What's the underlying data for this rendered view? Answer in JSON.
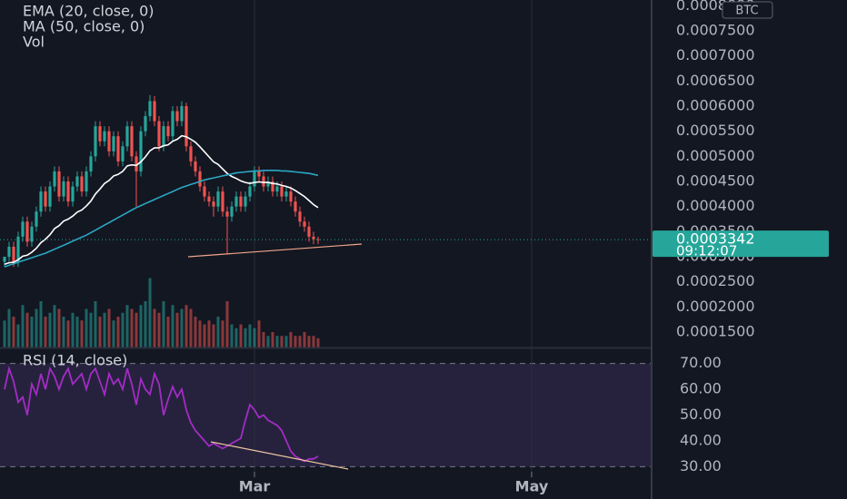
{
  "chart_data": [
    {
      "type": "candlestick",
      "currency": "BTC",
      "last_price": 0.0003342,
      "countdown": "09:12:07",
      "up_color": "#26a69a",
      "down_color": "#ef5350",
      "xlim": [
        -1,
        142.2
      ],
      "ylim": [
        0.0001193,
        0.0008114
      ],
      "yticks": [
        {
          "value": 0.0008,
          "label": "0.0008000"
        },
        {
          "value": 0.00075,
          "label": "0.0007500"
        },
        {
          "value": 0.0007,
          "label": "0.0007000"
        },
        {
          "value": 0.00065,
          "label": "0.0006500"
        },
        {
          "value": 0.0006,
          "label": "0.0006000"
        },
        {
          "value": 0.00055,
          "label": "0.0005500"
        },
        {
          "value": 0.0005,
          "label": "0.0005000"
        },
        {
          "value": 0.00045,
          "label": "0.0004500"
        },
        {
          "value": 0.0004,
          "label": "0.0004000"
        },
        {
          "value": 0.00035,
          "label": "0.0003500"
        },
        {
          "value": 0.0003,
          "label": "0.0003000"
        },
        {
          "value": 0.00025,
          "label": "0.0002500"
        },
        {
          "value": 0.0002,
          "label": "0.0002000"
        },
        {
          "value": 0.00015,
          "label": "0.0001500"
        }
      ],
      "open": [
        0.00029,
        0.0003,
        0.00032,
        0.00029,
        0.00034,
        0.00037,
        0.00033,
        0.00036,
        0.00039,
        0.00043,
        0.0004,
        0.00044,
        0.00047,
        0.00042,
        0.00045,
        0.00041,
        0.00044,
        0.00046,
        0.00043,
        0.00047,
        0.0005,
        0.00056,
        0.00053,
        0.00055,
        0.00051,
        0.00054,
        0.00049,
        0.00052,
        0.00056,
        0.0005,
        0.00047,
        0.00055,
        0.00058,
        0.00061,
        0.00057,
        0.00052,
        0.00056,
        0.00054,
        0.00059,
        0.00057,
        0.0006,
        0.00052,
        0.00049,
        0.00047,
        0.00044,
        0.00042,
        0.00041,
        0.0004,
        0.00043,
        0.00039,
        0.00038,
        0.0004,
        0.00042,
        0.0004,
        0.00042,
        0.00044,
        0.00047,
        0.00046,
        0.00044,
        0.00045,
        0.00043,
        0.00044,
        0.00042,
        0.00043,
        0.00041,
        0.00039,
        0.00037,
        0.00036,
        0.00034,
        0.000335
      ],
      "high": [
        0.0003,
        0.00033,
        0.00033,
        0.00035,
        0.00038,
        0.00038,
        0.00037,
        0.0004,
        0.00044,
        0.00044,
        0.00045,
        0.00048,
        0.00048,
        0.00046,
        0.00046,
        0.00045,
        0.00047,
        0.00047,
        0.00048,
        0.00051,
        0.00057,
        0.00057,
        0.00056,
        0.00056,
        0.00055,
        0.00055,
        0.00053,
        0.00057,
        0.00057,
        0.00051,
        0.00056,
        0.00059,
        0.000622,
        0.00062,
        0.00058,
        0.00057,
        0.00057,
        0.0006,
        0.0006,
        0.00061,
        0.000607,
        0.00053,
        0.0005,
        0.00048,
        0.00045,
        0.00043,
        0.00042,
        0.00044,
        0.00044,
        0.0004,
        0.00041,
        0.00043,
        0.00043,
        0.00043,
        0.00045,
        0.00048,
        0.00048,
        0.00047,
        0.00046,
        0.00046,
        0.00045,
        0.00045,
        0.00044,
        0.00044,
        0.00042,
        0.0004,
        0.00038,
        0.00037,
        0.00035,
        0.00034
      ],
      "low": [
        0.00028,
        0.00029,
        0.00028,
        0.00028,
        0.00033,
        0.00032,
        0.00032,
        0.00035,
        0.00038,
        0.00039,
        0.00039,
        0.00043,
        0.00041,
        0.00041,
        0.0004,
        0.0004,
        0.00043,
        0.00042,
        0.00042,
        0.00046,
        0.00049,
        0.00052,
        0.00052,
        0.0005,
        0.0005,
        0.00048,
        0.00048,
        0.00051,
        0.00049,
        0.0004,
        0.00046,
        0.00054,
        0.00057,
        0.00056,
        0.00051,
        0.00051,
        0.00053,
        0.00053,
        0.00056,
        0.00056,
        0.00051,
        0.00048,
        0.00046,
        0.00043,
        0.00041,
        0.0004,
        0.00038,
        0.00039,
        0.00038,
        0.000305,
        0.00037,
        0.00039,
        0.00039,
        0.00039,
        0.00041,
        0.00043,
        0.00045,
        0.00043,
        0.00043,
        0.00042,
        0.00042,
        0.00041,
        0.00041,
        0.0004,
        0.00038,
        0.00036,
        0.00035,
        0.00033,
        0.000325,
        0.000325
      ],
      "close": [
        0.0003,
        0.00032,
        0.00029,
        0.00034,
        0.00037,
        0.00033,
        0.00036,
        0.00039,
        0.00043,
        0.0004,
        0.00044,
        0.00047,
        0.00042,
        0.00045,
        0.00041,
        0.00044,
        0.00046,
        0.00043,
        0.00047,
        0.0005,
        0.00056,
        0.00053,
        0.00055,
        0.00051,
        0.00054,
        0.00049,
        0.00052,
        0.00056,
        0.0005,
        0.00047,
        0.00055,
        0.00058,
        0.00061,
        0.00057,
        0.00052,
        0.00056,
        0.00054,
        0.00059,
        0.00057,
        0.0006,
        0.00052,
        0.00049,
        0.00047,
        0.00044,
        0.00042,
        0.00041,
        0.0004,
        0.00043,
        0.00039,
        0.00038,
        0.0004,
        0.00042,
        0.0004,
        0.00042,
        0.00044,
        0.00047,
        0.00046,
        0.00044,
        0.00045,
        0.00043,
        0.00044,
        0.00042,
        0.00043,
        0.00041,
        0.00039,
        0.00037,
        0.00036,
        0.00034,
        0.000335,
        0.0003342
      ],
      "series": [
        {
          "name": "EMA (20, close, 0)",
          "color": "#ffffff",
          "values": [
            0.000285,
            0.000288,
            0.000289,
            0.000294,
            0.000301,
            0.000303,
            0.000309,
            0.000317,
            0.000328,
            0.000335,
            0.000344,
            0.000356,
            0.000362,
            0.000371,
            0.000375,
            0.000381,
            0.000389,
            0.000393,
            0.000401,
            0.000411,
            0.000425,
            0.000435,
            0.000446,
            0.000452,
            0.000461,
            0.000464,
            0.00047,
            0.000481,
            0.000483,
            0.000482,
            0.000489,
            0.000499,
            0.000511,
            0.000517,
            0.000517,
            0.000521,
            0.000523,
            0.00053,
            0.000534,
            0.000541,
            0.000539,
            0.000534,
            0.000528,
            0.000519,
            0.000509,
            0.000499,
            0.000489,
            0.000484,
            0.000475,
            0.000466,
            0.00046,
            0.000456,
            0.000451,
            0.000448,
            0.000446,
            0.000448,
            0.000449,
            0.000448,
            0.000448,
            0.000446,
            0.000445,
            0.000442,
            0.00044,
            0.000437,
            0.000432,
            0.000426,
            0.00042,
            0.000412,
            0.000404,
            0.000398
          ]
        },
        {
          "name": "MA (50, close, 0)",
          "color": "#2aa8c4",
          "values": [
            0.00028,
            0.000283,
            0.000286,
            0.000289,
            0.000292,
            0.000295,
            0.000298,
            0.000301,
            0.000304,
            0.000307,
            0.000311,
            0.000315,
            0.000319,
            0.000323,
            0.000327,
            0.000331,
            0.000335,
            0.000339,
            0.000343,
            0.000348,
            0.000353,
            0.000358,
            0.000363,
            0.000368,
            0.000373,
            0.000378,
            0.000383,
            0.000388,
            0.000393,
            0.000398,
            0.000402,
            0.000406,
            0.00041,
            0.000414,
            0.000418,
            0.000422,
            0.000426,
            0.00043,
            0.000434,
            0.000438,
            0.000441,
            0.000444,
            0.000447,
            0.00045,
            0.000453,
            0.000455,
            0.000457,
            0.000459,
            0.000461,
            0.000463,
            0.000465,
            0.000467,
            0.000468,
            0.000469,
            0.00047,
            0.000471,
            0.000471,
            0.000472,
            0.000472,
            0.000472,
            0.000472,
            0.000471,
            0.000471,
            0.00047,
            0.000469,
            0.000468,
            0.000467,
            0.000466,
            0.000464,
            0.000462
          ]
        }
      ],
      "volume": {
        "name": "Vol",
        "ylim": [
          0,
          100
        ],
        "values": [
          35,
          50,
          40,
          30,
          55,
          45,
          40,
          50,
          60,
          40,
          45,
          55,
          50,
          40,
          35,
          45,
          40,
          35,
          50,
          45,
          60,
          40,
          45,
          50,
          35,
          40,
          45,
          55,
          50,
          45,
          55,
          60,
          90,
          50,
          45,
          60,
          40,
          55,
          45,
          50,
          55,
          50,
          40,
          35,
          30,
          35,
          30,
          40,
          35,
          60,
          30,
          25,
          30,
          25,
          30,
          25,
          35,
          20,
          15,
          20,
          15,
          15,
          15,
          20,
          15,
          15,
          20,
          15,
          15,
          12
        ]
      }
    },
    {
      "type": "line",
      "xlim": [
        -1,
        142.2
      ],
      "xticks": [
        {
          "value": 55,
          "label": "Mar"
        },
        {
          "value": 116,
          "label": "May"
        }
      ],
      "ylim": [
        28,
        75.5
      ],
      "yticks": [
        {
          "value": 30,
          "label": "30.00"
        },
        {
          "value": 40,
          "label": "40.00"
        },
        {
          "value": 50,
          "label": "50.00"
        },
        {
          "value": 60,
          "label": "60.00"
        },
        {
          "value": 70,
          "label": "70.00"
        }
      ],
      "band": [
        30,
        70
      ],
      "series": [
        {
          "name": "RSI (14, close)",
          "color": "#a32cc4",
          "values": [
            60,
            68,
            63,
            55,
            57,
            50,
            62,
            58,
            66,
            60,
            68,
            65,
            60,
            65,
            68,
            62,
            64,
            66,
            60,
            66,
            68,
            63,
            58,
            66,
            62,
            64,
            60,
            68,
            62,
            54,
            64,
            60,
            58,
            66,
            62,
            50,
            56,
            61,
            57,
            60,
            52,
            47,
            44,
            42,
            40,
            38,
            39,
            38,
            37,
            38,
            39,
            40,
            41,
            48,
            54,
            52,
            49,
            50,
            48,
            47,
            46,
            44,
            40,
            36,
            34,
            33,
            32,
            33,
            33,
            34
          ]
        }
      ]
    }
  ]
}
